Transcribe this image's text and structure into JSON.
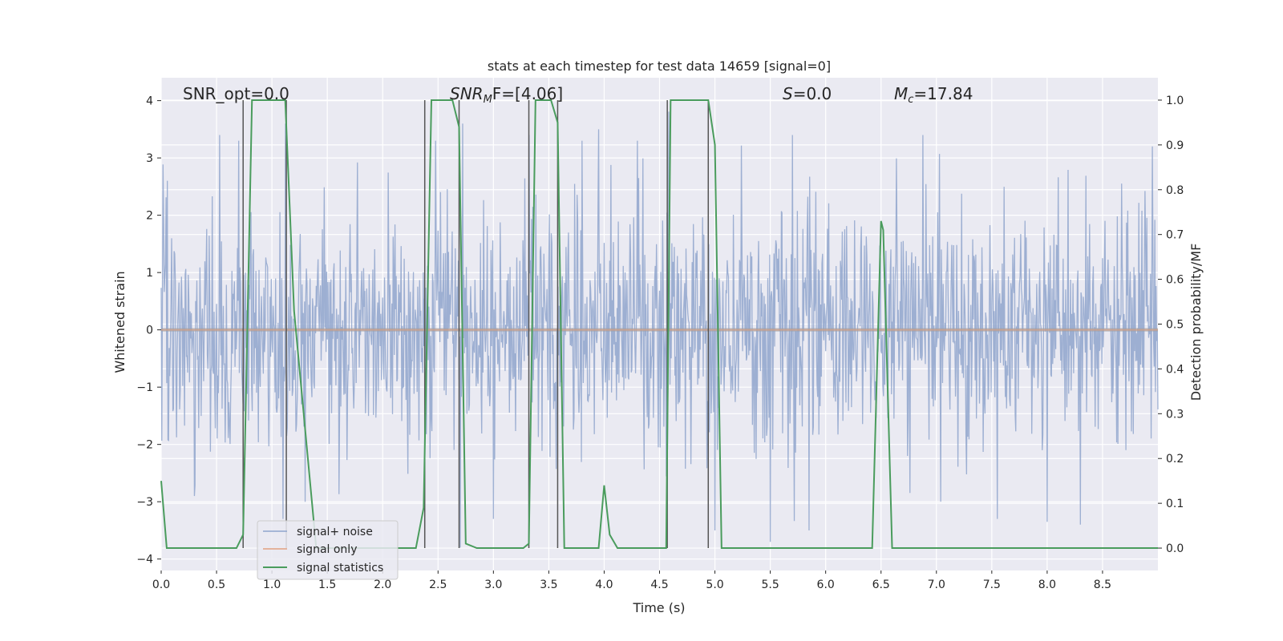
{
  "chart_data": {
    "type": "line",
    "title": "stats at each timestep for test data 14659 [signal=0]",
    "xlabel": "Time (s)",
    "ylabel": "Whitened strain",
    "y2label": "Detection probability/MF",
    "xlim": [
      0.0,
      9.0
    ],
    "ylim": [
      -4.2,
      4.4
    ],
    "y2lim": [
      -0.05,
      1.05
    ],
    "xticks": [
      0.0,
      0.5,
      1.0,
      1.5,
      2.0,
      2.5,
      3.0,
      3.5,
      4.0,
      4.5,
      5.0,
      5.5,
      6.0,
      6.5,
      7.0,
      7.5,
      8.0,
      8.5
    ],
    "xtick_labels": [
      "0.0",
      "0.5",
      "1.0",
      "1.5",
      "2.0",
      "2.5",
      "3.0",
      "3.5",
      "4.0",
      "4.5",
      "5.0",
      "5.5",
      "6.0",
      "6.5",
      "7.0",
      "7.5",
      "8.0",
      "8.5"
    ],
    "yticks": [
      -4,
      -3,
      -2,
      -1,
      0,
      1,
      2,
      3,
      4
    ],
    "ytick_labels": [
      "−4",
      "−3",
      "−2",
      "−1",
      "0",
      "1",
      "2",
      "3",
      "4"
    ],
    "y2ticks": [
      0.0,
      0.1,
      0.2,
      0.3,
      0.4,
      0.5,
      0.6,
      0.7,
      0.8,
      0.9,
      1.0
    ],
    "y2tick_labels": [
      "0.0",
      "0.1",
      "0.2",
      "0.3",
      "0.4",
      "0.5",
      "0.6",
      "0.7",
      "0.8",
      "0.9",
      "1.0"
    ],
    "grid": true,
    "legend_position": "lower-left",
    "annotations": {
      "snr_opt": "SNR_opt=0.0",
      "snr_mf_sym": "SNR",
      "snr_mf_sub": "M",
      "snr_mf_rest": "F=[4.06]",
      "s_sym": "S",
      "s_rest": "=0.0",
      "mc_sym": "M",
      "mc_sub": "c",
      "mc_rest": "=17.84"
    },
    "vertical_markers": [
      0.74,
      1.13,
      2.38,
      2.69,
      3.32,
      3.58,
      4.57,
      4.94
    ],
    "series": [
      {
        "name": "signal+ noise",
        "color": "#8fa5cd",
        "axis": "left",
        "kind": "noise",
        "amplitude_std": 1.0,
        "sample_rate": 180,
        "peaks": [
          [
            0.53,
            3.4
          ],
          [
            0.7,
            3.3
          ],
          [
            1.12,
            3.6
          ],
          [
            2.48,
            3.3
          ],
          [
            2.72,
            3.6
          ],
          [
            3.32,
            3.4
          ],
          [
            3.8,
            3.3
          ],
          [
            3.95,
            3.5
          ],
          [
            4.3,
            3.3
          ],
          [
            5.7,
            3.4
          ],
          [
            6.88,
            3.4
          ],
          [
            7.55,
            4.0
          ],
          [
            8.95,
            3.2
          ]
        ],
        "troughs": [
          [
            0.3,
            -2.9
          ],
          [
            1.1,
            -3.3
          ],
          [
            1.3,
            -3.0
          ],
          [
            2.7,
            -3.8
          ],
          [
            3.0,
            -3.3
          ],
          [
            5.0,
            -3.5
          ],
          [
            5.5,
            -3.7
          ],
          [
            5.85,
            -3.5
          ],
          [
            7.55,
            -3.3
          ],
          [
            8.0,
            -3.35
          ],
          [
            8.3,
            -3.4
          ]
        ]
      },
      {
        "name": "signal only",
        "color": "#e1a07f",
        "axis": "left",
        "values_constant": 0.0
      },
      {
        "name": "signal statistics",
        "color": "#4a9c5d",
        "axis": "right",
        "x": [
          0.0,
          0.05,
          0.15,
          0.35,
          0.55,
          0.68,
          0.74,
          0.82,
          1.0,
          1.12,
          1.2,
          1.4,
          2.0,
          2.3,
          2.37,
          2.44,
          2.55,
          2.63,
          2.69,
          2.75,
          2.85,
          3.1,
          3.27,
          3.32,
          3.38,
          3.45,
          3.52,
          3.58,
          3.64,
          3.72,
          3.85,
          3.95,
          4.0,
          4.05,
          4.12,
          4.3,
          4.56,
          4.6,
          4.75,
          4.94,
          5.0,
          5.06,
          5.2,
          6.0,
          6.42,
          6.5,
          6.52,
          6.6,
          6.8,
          7.5,
          8.5,
          9.0
        ],
        "y": [
          0.15,
          0.0,
          0.0,
          0.0,
          0.0,
          0.0,
          0.03,
          1.0,
          1.0,
          1.0,
          0.53,
          0.0,
          0.0,
          0.0,
          0.09,
          1.0,
          1.0,
          1.0,
          0.94,
          0.01,
          0.0,
          0.0,
          0.0,
          0.01,
          1.0,
          1.0,
          1.0,
          0.95,
          0.0,
          0.0,
          0.0,
          0.0,
          0.14,
          0.03,
          0.0,
          0.0,
          0.0,
          1.0,
          1.0,
          1.0,
          0.9,
          0.0,
          0.0,
          0.0,
          0.0,
          0.73,
          0.71,
          0.0,
          0.0,
          0.0,
          0.0,
          0.0
        ]
      }
    ]
  }
}
